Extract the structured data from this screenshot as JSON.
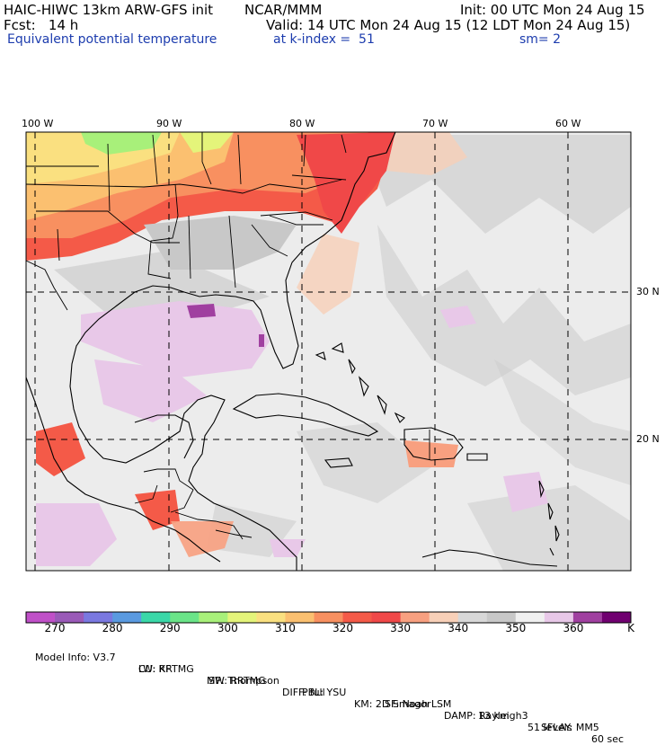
{
  "header": {
    "model_line": "HAIC-HIWC 13km ARW-GFS init",
    "org": "NCAR/MMM",
    "init": "Init: 00 UTC Mon 24 Aug 15",
    "fcst": "Fcst:   14 h",
    "valid": "Valid: 14 UTC Mon 24 Aug 15 (12 LDT Mon 24 Aug 15)",
    "field": "Equivalent potential temperature",
    "level": "at k-index =  51",
    "smooth": "sm= 2"
  },
  "axes": {
    "lon_labels": [
      "100 W",
      "90 W",
      "80 W",
      "70 W",
      "60 W"
    ],
    "lat_labels": [
      "30 N",
      "20 N"
    ]
  },
  "colorbar": {
    "unit": "K",
    "tick_labels": [
      "270",
      "280",
      "290",
      "300",
      "310",
      "320",
      "330",
      "340",
      "350",
      "360"
    ],
    "colors": [
      "#c050c8",
      "#9a5ab8",
      "#7a78e0",
      "#5a9ae0",
      "#3ad8a8",
      "#6ae488",
      "#a8f07a",
      "#e4f47a",
      "#fae080",
      "#fbc070",
      "#f89060",
      "#f45a48",
      "#f04848",
      "#f8a080",
      "#f8d0b8",
      "#d8d8d8",
      "#c8c8c8",
      "#f0f0f0",
      "#e8c8e8",
      "#a040a0",
      "#700070"
    ]
  },
  "model_info": {
    "line1": [
      "Model Info: V3.7",
      "CU: KF",
      "MP: Thompson",
      "PBL: YSU",
      "SF: Noah LSM",
      "13 km",
      "51 levels",
      "60 sec"
    ],
    "line2": [
      "LW: RRTMG",
      "SW: RRTMG",
      "DIFF: full",
      "KM: 2D Smagor",
      "DAMP: Rayleigh3",
      "SFLAY: MM5"
    ]
  }
}
